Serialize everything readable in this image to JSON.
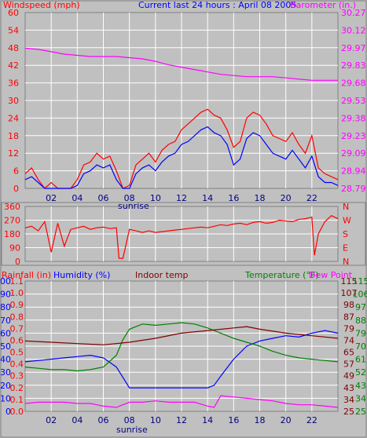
{
  "title": "Current last 24 hours : April 08 2005",
  "colors": {
    "red": "#ff0000",
    "blue": "#0000ff",
    "magenta": "#ff00ff",
    "green": "#008000",
    "maroon": "#800000",
    "grid": "#ffffff",
    "background": "#c0c0c0",
    "tick_text": "#000080"
  },
  "chart_data": [
    {
      "type": "line",
      "panel": "wind",
      "title": "Current last 24 hours : April 08 2005",
      "left_axis_label": "Windspeed (mph)",
      "right_axis_label": "Barometer (in.)",
      "left_ticks": [
        "60",
        "54",
        "48",
        "42",
        "36",
        "30",
        "24",
        "18",
        "12",
        "6",
        "0"
      ],
      "right_ticks": [
        "30.27",
        "30.12",
        "29.97",
        "29.83",
        "29.68",
        "29.53",
        "29.38",
        "29.23",
        "29.09",
        "28.94",
        "28.79"
      ],
      "x_ticks": [
        "02",
        "04",
        "06",
        "08",
        "10",
        "12",
        "14",
        "16",
        "18",
        "20",
        "22"
      ],
      "x_annotation": "sunrise",
      "ylim_left": [
        0,
        60
      ],
      "ylim_right": [
        28.79,
        30.27
      ],
      "xlim": [
        0,
        24
      ],
      "grid": true,
      "series": [
        {
          "name": "Windspeed (mph)",
          "color": "#ff0000",
          "axis": "left",
          "x": [
            0,
            0.5,
            1,
            1.5,
            2,
            2.5,
            3,
            3.5,
            4,
            4.5,
            5,
            5.5,
            6,
            6.5,
            7,
            7.5,
            8,
            8.5,
            9,
            9.5,
            10,
            10.5,
            11,
            11.5,
            12,
            12.5,
            13,
            13.5,
            14,
            14.5,
            15,
            15.5,
            16,
            16.5,
            17,
            17.5,
            18,
            18.5,
            19,
            19.5,
            20,
            20.5,
            21,
            21.5,
            22,
            22.5,
            23,
            23.5,
            24
          ],
          "values": [
            5,
            7,
            3,
            0,
            2,
            0,
            0,
            0,
            3,
            8,
            9,
            12,
            10,
            11,
            6,
            0,
            1,
            8,
            10,
            12,
            9,
            13,
            15,
            16,
            20,
            22,
            24,
            26,
            27,
            25,
            24,
            20,
            14,
            16,
            24,
            26,
            25,
            22,
            18,
            17,
            16,
            19,
            15,
            12,
            18,
            7,
            5,
            4,
            3
          ]
        },
        {
          "name": "Gust",
          "color": "#0000ff",
          "axis": "left",
          "x": [
            0,
            0.5,
            1,
            1.5,
            2,
            2.5,
            3,
            3.5,
            4,
            4.5,
            5,
            5.5,
            6,
            6.5,
            7,
            7.5,
            8,
            8.5,
            9,
            9.5,
            10,
            10.5,
            11,
            11.5,
            12,
            12.5,
            13,
            13.5,
            14,
            14.5,
            15,
            15.5,
            16,
            16.5,
            17,
            17.5,
            18,
            18.5,
            19,
            19.5,
            20,
            20.5,
            21,
            21.5,
            22,
            22.5,
            23,
            23.5,
            24
          ],
          "values": [
            3,
            4,
            2,
            0,
            0,
            0,
            0,
            0,
            1,
            5,
            6,
            8,
            7,
            8,
            3,
            0,
            0,
            5,
            7,
            8,
            6,
            9,
            11,
            12,
            15,
            16,
            18,
            20,
            21,
            19,
            18,
            15,
            8,
            10,
            17,
            19,
            18,
            15,
            12,
            11,
            10,
            13,
            10,
            7,
            11,
            4,
            2,
            2,
            1
          ]
        },
        {
          "name": "Barometer (in.)",
          "color": "#ff00ff",
          "axis": "right",
          "x": [
            0,
            1,
            2,
            3,
            4,
            5,
            6,
            7,
            8,
            9,
            10,
            11,
            12,
            13,
            14,
            15,
            16,
            17,
            18,
            19,
            20,
            21,
            22,
            23,
            24
          ],
          "values": [
            29.97,
            29.96,
            29.94,
            29.92,
            29.91,
            29.9,
            29.9,
            29.9,
            29.89,
            29.88,
            29.86,
            29.83,
            29.81,
            29.79,
            29.77,
            29.75,
            29.74,
            29.73,
            29.73,
            29.73,
            29.72,
            29.71,
            29.7,
            29.7,
            29.7
          ]
        }
      ]
    },
    {
      "type": "line",
      "panel": "direction",
      "left_ticks": [
        "360",
        "270",
        "180",
        "90",
        "0"
      ],
      "right_ticks": [
        "N",
        "W",
        "S",
        "E",
        "N"
      ],
      "ylim": [
        0,
        360
      ],
      "xlim": [
        0,
        24
      ],
      "grid": true,
      "series": [
        {
          "name": "Wind direction",
          "color": "#ff0000",
          "x": [
            0,
            0.5,
            1,
            1.5,
            2,
            2.5,
            3,
            3.5,
            4,
            4.5,
            5,
            5.5,
            6,
            6.5,
            7,
            7.2,
            7.5,
            8,
            8.5,
            9,
            9.5,
            10,
            10.5,
            11,
            11.5,
            12,
            12.5,
            13,
            13.5,
            14,
            14.5,
            15,
            15.5,
            16,
            16.5,
            17,
            17.5,
            18,
            18.5,
            19,
            19.5,
            20,
            20.5,
            21,
            21.5,
            22,
            22.2,
            22.5,
            23,
            23.5,
            24
          ],
          "values": [
            220,
            230,
            200,
            260,
            60,
            250,
            100,
            210,
            220,
            230,
            210,
            220,
            225,
            215,
            220,
            20,
            20,
            210,
            200,
            190,
            200,
            190,
            195,
            200,
            205,
            210,
            215,
            220,
            225,
            220,
            230,
            240,
            235,
            245,
            250,
            240,
            255,
            260,
            250,
            255,
            270,
            265,
            260,
            275,
            280,
            290,
            40,
            180,
            260,
            300,
            280
          ]
        }
      ]
    },
    {
      "type": "line",
      "panel": "humidity-temperature",
      "labels": {
        "rainfall": "Rainfall (in)",
        "humidity": "Humidity (%)",
        "indoor": "Indoor temp",
        "temperature": "Temperature (°F)",
        "dewpoint": "Dew Point"
      },
      "humidity_ticks": [
        "100",
        "90",
        "80",
        "70",
        "60",
        "50",
        "40",
        "30",
        "20",
        "10",
        "0"
      ],
      "rain_ticks": [
        "1.1",
        "1.0",
        "0.9",
        "0.8",
        "0.7",
        "0.6",
        "0.5",
        "0.4",
        "0.3",
        "0.2",
        "0.1",
        "0.0"
      ],
      "temp_ticks": [
        "115",
        "107",
        "98",
        "87",
        "79",
        "74",
        "65",
        "57",
        "49",
        "43",
        "34",
        "25"
      ],
      "dew_ticks": [
        "115",
        "106",
        "97",
        "88",
        "79",
        "70",
        "61",
        "52",
        "43",
        "34",
        "25"
      ],
      "x_ticks": [
        "02",
        "04",
        "06",
        "08",
        "10",
        "12",
        "14",
        "16",
        "18",
        "20",
        "22"
      ],
      "x_annotation": "sunrise",
      "ylim_humidity": [
        0,
        100
      ],
      "xlim": [
        0,
        24
      ],
      "grid": true,
      "series": [
        {
          "name": "Humidity (%)",
          "color": "#0000ff",
          "x": [
            0,
            1,
            2,
            3,
            4,
            5,
            6,
            7,
            7.5,
            8,
            9,
            10,
            11,
            12,
            13,
            14,
            14.5,
            15,
            16,
            17,
            18,
            19,
            20,
            21,
            22,
            23,
            24
          ],
          "values": [
            38,
            39,
            40,
            41,
            42,
            43,
            41,
            34,
            26,
            18,
            18,
            18,
            18,
            18,
            18,
            18,
            20,
            27,
            40,
            50,
            54,
            56,
            58,
            57,
            60,
            62,
            60
          ]
        },
        {
          "name": "Temperature (°F)",
          "color": "#008000",
          "x": [
            0,
            1,
            2,
            3,
            4,
            5,
            6,
            7,
            7.5,
            8,
            9,
            10,
            11,
            12,
            13,
            14,
            15,
            16,
            17,
            18,
            19,
            20,
            21,
            22,
            23,
            24
          ],
          "values": [
            34,
            33,
            32,
            32,
            31,
            32,
            34,
            43,
            55,
            63,
            67,
            66,
            67,
            68,
            67,
            64,
            60,
            56,
            53,
            50,
            46,
            43,
            41,
            40,
            39,
            38
          ]
        },
        {
          "name": "Indoor temp",
          "color": "#800000",
          "x": [
            0,
            2,
            4,
            6,
            8,
            10,
            12,
            14,
            16,
            17,
            18,
            20,
            22,
            24
          ],
          "values": [
            54,
            53,
            52,
            51,
            53,
            56,
            60,
            62,
            64,
            65,
            63,
            60,
            58,
            56
          ]
        },
        {
          "name": "Rainfall (in)",
          "color": "#ff00ff",
          "x": [
            0,
            1,
            2,
            3,
            4,
            5,
            6,
            7,
            7.5,
            8,
            9,
            10,
            11,
            12,
            13,
            14,
            14.5,
            15,
            16,
            17,
            18,
            19,
            20,
            21,
            22,
            23,
            24
          ],
          "values": [
            6,
            7,
            7,
            7,
            6,
            6,
            4,
            3,
            5,
            7,
            7,
            8,
            7,
            7,
            7,
            4,
            3,
            12,
            11,
            10,
            9,
            8,
            6,
            5,
            5,
            4,
            3
          ]
        }
      ]
    }
  ]
}
